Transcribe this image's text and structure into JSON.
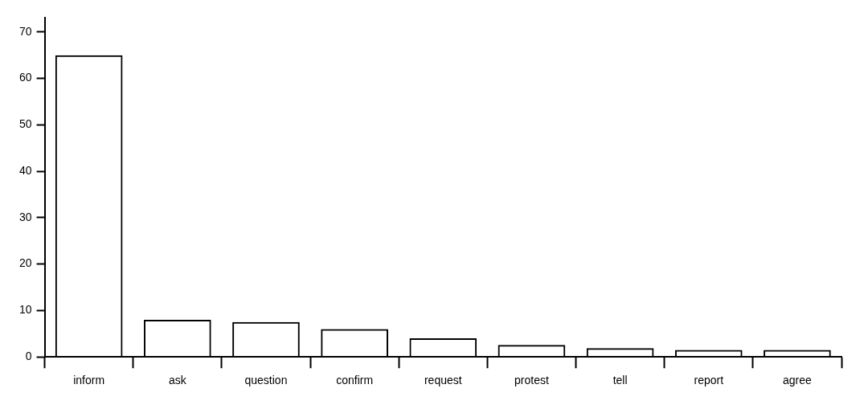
{
  "chart_data": {
    "type": "bar",
    "categories": [
      "inform",
      "ask",
      "question",
      "confirm",
      "request",
      "protest",
      "tell",
      "report",
      "agree"
    ],
    "values": [
      65,
      8,
      7.5,
      6,
      4,
      2.6,
      1.9,
      1.5,
      1.5
    ],
    "color": "#000000",
    "ylim": [
      0,
      73
    ],
    "yticks": [
      0,
      10,
      20,
      30,
      40,
      50,
      60,
      70
    ],
    "grid": false,
    "legend": false
  }
}
